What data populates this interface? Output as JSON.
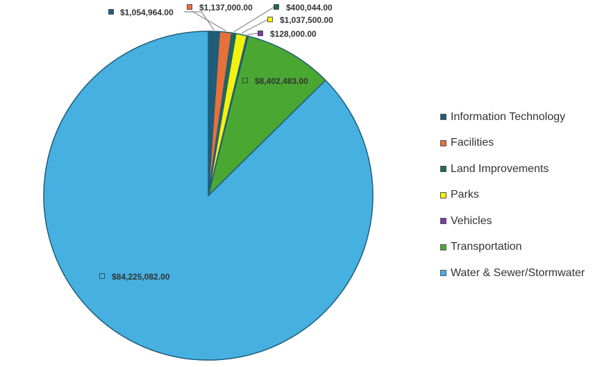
{
  "chart_data": {
    "type": "pie",
    "title": "",
    "legend_position": "right",
    "slices": [
      {
        "name": "Information Technology",
        "value": 1054964.0,
        "label": "$1,054,964.00",
        "color": "#1F5C7A"
      },
      {
        "name": "Facilities",
        "value": 1137000.0,
        "label": "$1,137,000.00",
        "color": "#E8703A"
      },
      {
        "name": "Land Improvements",
        "value": 400044.0,
        "label": "$400,044.00",
        "color": "#1E6B4E"
      },
      {
        "name": "Parks",
        "value": 1037500.0,
        "label": "$1,037,500.00",
        "color": "#F2F20C"
      },
      {
        "name": "Vehicles",
        "value": 128000.0,
        "label": "$128,000.00",
        "color": "#7A3FA0"
      },
      {
        "name": "Transportation",
        "value": 8402483.0,
        "label": "$8,402,483.00",
        "color": "#4AA832"
      },
      {
        "name": "Water & Sewer/Stormwater",
        "value": 84225082.0,
        "label": "$84,225,082.00",
        "color": "#46B0E0"
      }
    ]
  }
}
